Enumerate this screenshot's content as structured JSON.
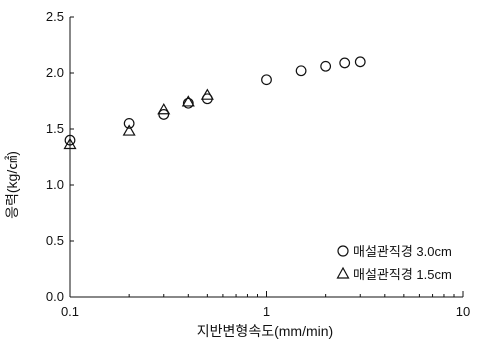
{
  "chart_data": {
    "type": "scatter",
    "title": "",
    "xlabel": "지반변형속도(mm/min)",
    "ylabel": "응력(kg/㎠)",
    "xscale": "log",
    "xlim": [
      0.1,
      10
    ],
    "ylim": [
      0.0,
      2.5
    ],
    "x_ticks": [
      "0.1",
      "1",
      "10"
    ],
    "y_ticks": [
      "0.0",
      "0.5",
      "1.0",
      "1.5",
      "2.0",
      "2.5"
    ],
    "grid": false,
    "legend_position": "bottom-right",
    "series": [
      {
        "name": "매설관직경 3.0cm",
        "marker": "circle",
        "points": [
          {
            "x": 0.1,
            "y": 1.4
          },
          {
            "x": 0.2,
            "y": 1.55
          },
          {
            "x": 0.3,
            "y": 1.63
          },
          {
            "x": 0.4,
            "y": 1.73
          },
          {
            "x": 0.5,
            "y": 1.77
          },
          {
            "x": 1.0,
            "y": 1.94
          },
          {
            "x": 1.5,
            "y": 2.02
          },
          {
            "x": 2.0,
            "y": 2.06
          },
          {
            "x": 2.5,
            "y": 2.09
          },
          {
            "x": 3.0,
            "y": 2.1
          }
        ]
      },
      {
        "name": "매설관직경 1.5cm",
        "marker": "triangle",
        "points": [
          {
            "x": 0.1,
            "y": 1.36
          },
          {
            "x": 0.2,
            "y": 1.48
          },
          {
            "x": 0.3,
            "y": 1.67
          },
          {
            "x": 0.4,
            "y": 1.74
          },
          {
            "x": 0.5,
            "y": 1.8
          }
        ]
      }
    ]
  }
}
